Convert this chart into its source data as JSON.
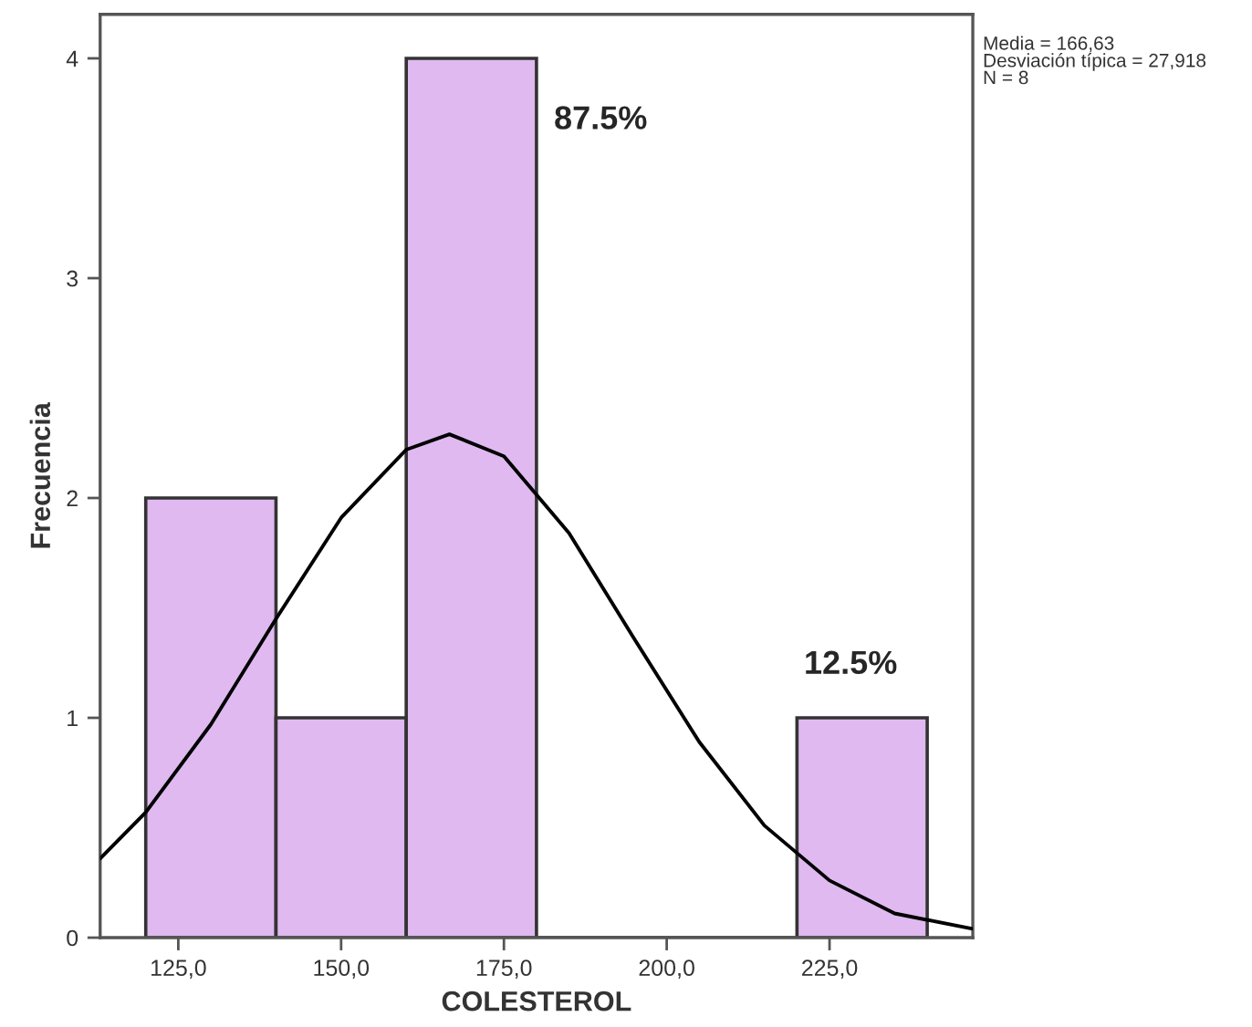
{
  "chart_data": {
    "type": "histogram",
    "xlabel": "COLESTEROL",
    "ylabel": "Frecuencia",
    "bins": [
      120,
      140,
      160,
      180,
      200,
      220,
      240
    ],
    "values": [
      2,
      1,
      4,
      0,
      0,
      1
    ],
    "color": "#dfb9f0",
    "series": [
      {
        "type": "line",
        "color": "#000000",
        "x": [
          113,
          120,
          130,
          140,
          150,
          160,
          166.63,
          175,
          185,
          195,
          205,
          215,
          225,
          235,
          247
        ],
        "values": [
          0.36,
          0.57,
          0.97,
          1.45,
          1.91,
          2.22,
          2.29,
          2.19,
          1.84,
          1.36,
          0.89,
          0.51,
          0.26,
          0.11,
          0.04
        ]
      }
    ],
    "xlim": [
      113,
      247
    ],
    "xticks": [
      {
        "value": 125,
        "label": "125,0"
      },
      {
        "value": 150,
        "label": "150,0"
      },
      {
        "value": 175,
        "label": "175,0"
      },
      {
        "value": 200,
        "label": "200,0"
      },
      {
        "value": 225,
        "label": "225,0"
      }
    ],
    "ylim": [
      0,
      4.2
    ],
    "yticks": [
      0,
      1,
      2,
      3,
      4
    ],
    "grid": false,
    "annotations": [
      "87.5%",
      "12.5%",
      "Media = 166,63\nDesviación típica = 27,918\nN = 8"
    ]
  }
}
